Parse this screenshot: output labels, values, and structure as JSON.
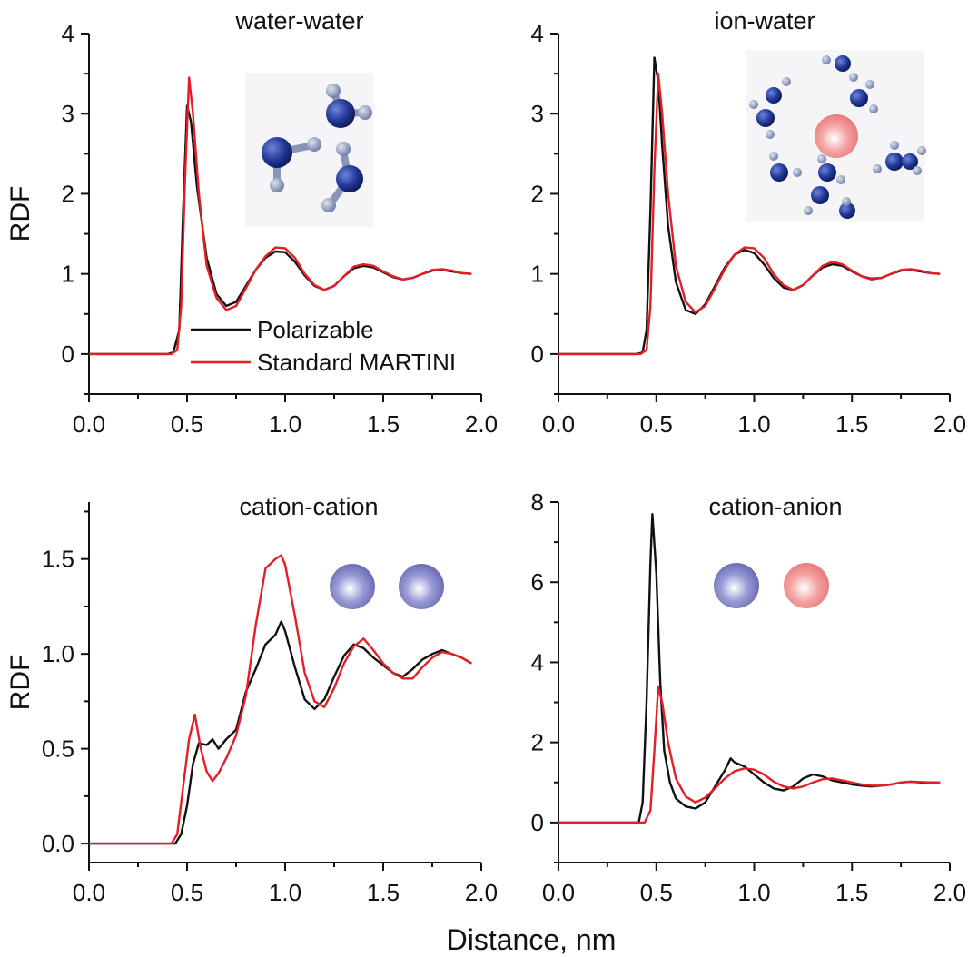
{
  "figure": {
    "xlabel": "Distance, nm",
    "legend": {
      "items": [
        "Polarizable",
        "Standard MARTINI"
      ],
      "placement": "lower-middle of water-water panel"
    },
    "colors": {
      "polarizable": "#111111",
      "standard": "#e41e26",
      "axis": "#111111"
    }
  },
  "chart_data": [
    {
      "type": "line",
      "title": "water-water",
      "ylabel": "RDF",
      "xlim": [
        0.0,
        2.0
      ],
      "ylim": [
        -0.5,
        4.0
      ],
      "xticks": [
        "0.0",
        "0.5",
        "1.0",
        "1.5",
        "2.0"
      ],
      "yticks": [
        "0",
        "1",
        "2",
        "3",
        "4"
      ],
      "inset": "three-water-molecules-icon",
      "series": [
        {
          "name": "Polarizable",
          "color": "#111111",
          "x": [
            0.0,
            0.4,
            0.43,
            0.46,
            0.48,
            0.5,
            0.52,
            0.55,
            0.6,
            0.65,
            0.7,
            0.75,
            0.8,
            0.85,
            0.9,
            0.95,
            1.0,
            1.05,
            1.1,
            1.15,
            1.2,
            1.25,
            1.3,
            1.35,
            1.4,
            1.45,
            1.5,
            1.55,
            1.6,
            1.65,
            1.7,
            1.75,
            1.8,
            1.85,
            1.9,
            1.95
          ],
          "y": [
            0,
            0,
            0.02,
            0.3,
            1.8,
            3.1,
            2.9,
            2.1,
            1.2,
            0.75,
            0.6,
            0.65,
            0.85,
            1.05,
            1.2,
            1.28,
            1.27,
            1.15,
            0.98,
            0.85,
            0.8,
            0.85,
            0.97,
            1.07,
            1.1,
            1.08,
            1.02,
            0.96,
            0.93,
            0.95,
            1.0,
            1.04,
            1.05,
            1.03,
            1.01,
            1.0
          ]
        },
        {
          "name": "Standard MARTINI",
          "color": "#e41e26",
          "x": [
            0.0,
            0.42,
            0.45,
            0.47,
            0.49,
            0.51,
            0.53,
            0.56,
            0.6,
            0.65,
            0.7,
            0.75,
            0.8,
            0.85,
            0.9,
            0.95,
            1.0,
            1.05,
            1.1,
            1.15,
            1.2,
            1.25,
            1.3,
            1.35,
            1.4,
            1.45,
            1.5,
            1.55,
            1.6,
            1.65,
            1.7,
            1.75,
            1.8,
            1.85,
            1.9,
            1.95
          ],
          "y": [
            0,
            0,
            0.05,
            0.6,
            2.2,
            3.45,
            3.0,
            2.0,
            1.1,
            0.7,
            0.55,
            0.6,
            0.82,
            1.05,
            1.22,
            1.33,
            1.32,
            1.2,
            1.0,
            0.86,
            0.8,
            0.85,
            0.97,
            1.09,
            1.12,
            1.1,
            1.03,
            0.97,
            0.93,
            0.95,
            1.0,
            1.05,
            1.06,
            1.04,
            1.01,
            1.0
          ]
        }
      ]
    },
    {
      "type": "line",
      "title": "ion-water",
      "ylabel": "",
      "xlim": [
        0.0,
        2.0
      ],
      "ylim": [
        -0.5,
        4.0
      ],
      "xticks": [
        "0.0",
        "0.5",
        "1.0",
        "1.5",
        "2.0"
      ],
      "yticks": [
        "0",
        "1",
        "2",
        "3",
        "4"
      ],
      "inset": "ion-hydration-shell-icon",
      "series": [
        {
          "name": "Polarizable",
          "color": "#111111",
          "x": [
            0.0,
            0.4,
            0.43,
            0.45,
            0.47,
            0.49,
            0.51,
            0.53,
            0.56,
            0.6,
            0.65,
            0.7,
            0.75,
            0.8,
            0.85,
            0.9,
            0.95,
            1.0,
            1.05,
            1.1,
            1.15,
            1.2,
            1.25,
            1.3,
            1.35,
            1.4,
            1.45,
            1.5,
            1.55,
            1.6,
            1.65,
            1.7,
            1.75,
            1.8,
            1.85,
            1.9,
            1.95
          ],
          "y": [
            0,
            0,
            0.02,
            0.3,
            1.8,
            3.7,
            3.4,
            2.6,
            1.6,
            0.9,
            0.55,
            0.5,
            0.62,
            0.85,
            1.08,
            1.24,
            1.3,
            1.26,
            1.12,
            0.95,
            0.83,
            0.8,
            0.86,
            0.98,
            1.08,
            1.12,
            1.1,
            1.03,
            0.97,
            0.94,
            0.95,
            1.0,
            1.04,
            1.05,
            1.03,
            1.01,
            1.0
          ]
        },
        {
          "name": "Standard MARTINI",
          "color": "#e41e26",
          "x": [
            0.0,
            0.42,
            0.45,
            0.47,
            0.49,
            0.51,
            0.53,
            0.56,
            0.6,
            0.65,
            0.7,
            0.75,
            0.8,
            0.85,
            0.9,
            0.95,
            1.0,
            1.05,
            1.1,
            1.15,
            1.2,
            1.25,
            1.3,
            1.35,
            1.4,
            1.45,
            1.5,
            1.55,
            1.6,
            1.65,
            1.7,
            1.75,
            1.8,
            1.85,
            1.9,
            1.95
          ],
          "y": [
            0,
            0,
            0.05,
            0.6,
            2.3,
            3.5,
            3.0,
            2.0,
            1.1,
            0.65,
            0.52,
            0.6,
            0.82,
            1.06,
            1.24,
            1.33,
            1.32,
            1.2,
            1.0,
            0.86,
            0.8,
            0.86,
            0.98,
            1.1,
            1.15,
            1.12,
            1.04,
            0.97,
            0.93,
            0.95,
            1.0,
            1.05,
            1.06,
            1.04,
            1.01,
            1.0
          ]
        }
      ]
    },
    {
      "type": "line",
      "title": "cation-cation",
      "ylabel": "RDF",
      "xlim": [
        0.0,
        2.0
      ],
      "ylim": [
        -0.1,
        1.8
      ],
      "xticks": [
        "0.0",
        "0.5",
        "1.0",
        "1.5",
        "2.0"
      ],
      "yticks": [
        "0.0",
        "0.5",
        "1.0",
        "1.5"
      ],
      "inset": "two-cations-icon",
      "series": [
        {
          "name": "Polarizable",
          "color": "#111111",
          "x": [
            0.0,
            0.44,
            0.47,
            0.5,
            0.53,
            0.56,
            0.6,
            0.63,
            0.66,
            0.7,
            0.75,
            0.8,
            0.85,
            0.9,
            0.95,
            0.98,
            1.0,
            1.05,
            1.1,
            1.15,
            1.2,
            1.25,
            1.3,
            1.35,
            1.4,
            1.45,
            1.5,
            1.55,
            1.6,
            1.65,
            1.7,
            1.75,
            1.8,
            1.85,
            1.9,
            1.95
          ],
          "y": [
            0,
            0,
            0.05,
            0.2,
            0.42,
            0.53,
            0.52,
            0.55,
            0.5,
            0.55,
            0.6,
            0.8,
            0.92,
            1.05,
            1.1,
            1.17,
            1.12,
            0.93,
            0.76,
            0.71,
            0.76,
            0.88,
            0.99,
            1.05,
            1.03,
            0.98,
            0.94,
            0.9,
            0.88,
            0.92,
            0.97,
            1.0,
            1.02,
            1.0,
            0.98,
            0.95
          ]
        },
        {
          "name": "Standard MARTINI",
          "color": "#e41e26",
          "x": [
            0.0,
            0.42,
            0.45,
            0.48,
            0.51,
            0.54,
            0.57,
            0.6,
            0.63,
            0.66,
            0.7,
            0.75,
            0.8,
            0.85,
            0.9,
            0.95,
            0.98,
            1.0,
            1.05,
            1.1,
            1.15,
            1.2,
            1.25,
            1.3,
            1.35,
            1.4,
            1.45,
            1.5,
            1.55,
            1.6,
            1.65,
            1.7,
            1.75,
            1.8,
            1.85,
            1.9,
            1.95
          ],
          "y": [
            0,
            0,
            0.05,
            0.3,
            0.55,
            0.68,
            0.5,
            0.38,
            0.33,
            0.37,
            0.45,
            0.57,
            0.78,
            1.15,
            1.45,
            1.5,
            1.52,
            1.47,
            1.2,
            0.9,
            0.75,
            0.72,
            0.82,
            0.95,
            1.04,
            1.08,
            1.02,
            0.95,
            0.9,
            0.87,
            0.87,
            0.93,
            0.98,
            1.01,
            1.0,
            0.98,
            0.95
          ]
        }
      ]
    },
    {
      "type": "line",
      "title": "cation-anion",
      "ylabel": "",
      "xlim": [
        0.0,
        2.0
      ],
      "ylim": [
        -1.0,
        8.0
      ],
      "xticks": [
        "0.0",
        "0.5",
        "1.0",
        "1.5",
        "2.0"
      ],
      "yticks": [
        "0",
        "2",
        "4",
        "6",
        "8"
      ],
      "inset": "cation-anion-pair-icon",
      "series": [
        {
          "name": "Polarizable",
          "color": "#111111",
          "x": [
            0.0,
            0.41,
            0.43,
            0.45,
            0.47,
            0.48,
            0.5,
            0.52,
            0.54,
            0.57,
            0.6,
            0.65,
            0.7,
            0.75,
            0.8,
            0.85,
            0.88,
            0.9,
            0.95,
            1.0,
            1.05,
            1.1,
            1.15,
            1.2,
            1.25,
            1.3,
            1.35,
            1.4,
            1.45,
            1.5,
            1.55,
            1.6,
            1.65,
            1.7,
            1.75,
            1.8,
            1.85,
            1.9,
            1.95
          ],
          "y": [
            0,
            0,
            0.5,
            3.0,
            6.5,
            7.7,
            6.2,
            3.5,
            1.8,
            1.0,
            0.6,
            0.4,
            0.35,
            0.5,
            0.9,
            1.3,
            1.6,
            1.5,
            1.4,
            1.2,
            1.0,
            0.85,
            0.8,
            0.9,
            1.1,
            1.2,
            1.15,
            1.05,
            1.0,
            0.95,
            0.92,
            0.9,
            0.92,
            0.95,
            1.0,
            1.02,
            1.0,
            1.0,
            1.0
          ]
        },
        {
          "name": "Standard MARTINI",
          "color": "#e41e26",
          "x": [
            0.0,
            0.44,
            0.47,
            0.49,
            0.51,
            0.53,
            0.56,
            0.6,
            0.65,
            0.7,
            0.75,
            0.8,
            0.85,
            0.9,
            0.95,
            1.0,
            1.05,
            1.1,
            1.15,
            1.2,
            1.25,
            1.3,
            1.35,
            1.4,
            1.45,
            1.5,
            1.55,
            1.6,
            1.65,
            1.7,
            1.75,
            1.8,
            1.85,
            1.9,
            1.95
          ],
          "y": [
            0,
            0,
            0.3,
            1.8,
            3.4,
            3.0,
            2.0,
            1.1,
            0.65,
            0.5,
            0.62,
            0.85,
            1.1,
            1.28,
            1.35,
            1.32,
            1.2,
            1.02,
            0.9,
            0.85,
            0.9,
            1.0,
            1.08,
            1.1,
            1.05,
            1.0,
            0.95,
            0.92,
            0.92,
            0.95,
            1.0,
            1.02,
            1.01,
            1.0,
            1.0
          ]
        }
      ]
    }
  ]
}
